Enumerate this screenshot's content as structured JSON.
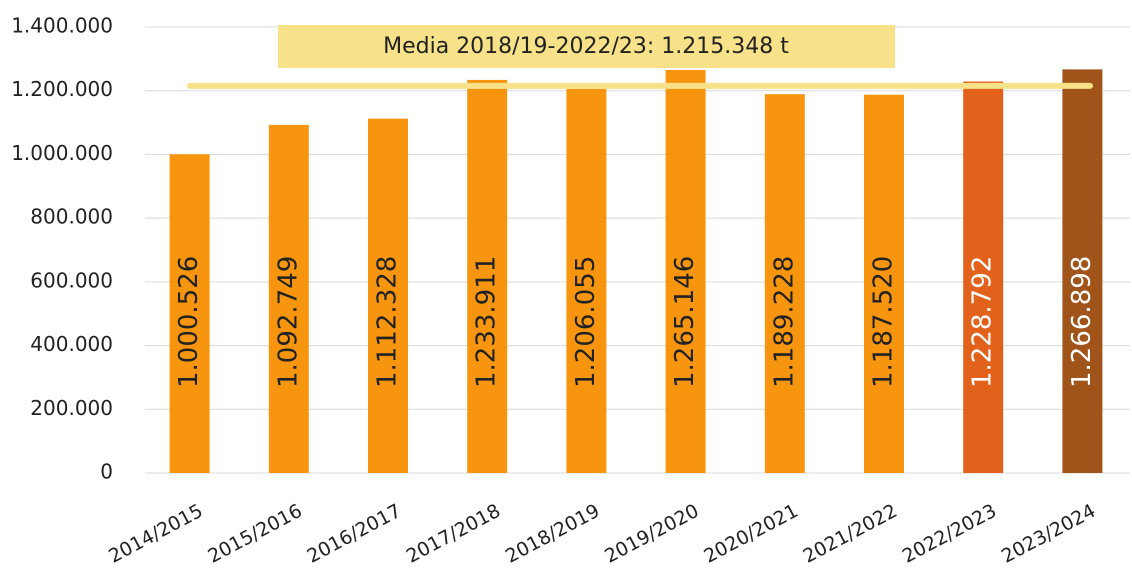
{
  "chart_data": {
    "type": "bar",
    "categories": [
      "2014/2015",
      "2015/2016",
      "2016/2017",
      "2017/2018",
      "2018/2019",
      "2019/2020",
      "2020/2021",
      "2021/2022",
      "2022/2023",
      "2023/2024"
    ],
    "values": [
      1000526,
      1092749,
      1112328,
      1233911,
      1206055,
      1265146,
      1189228,
      1187520,
      1228792,
      1266898
    ],
    "value_labels": [
      "1.000.526",
      "1.092.749",
      "1.112.328",
      "1.233.911",
      "1.206.055",
      "1.265.146",
      "1.189.228",
      "1.187.520",
      "1.228.792",
      "1.266.898"
    ],
    "colors": [
      "#f7960e",
      "#f7960e",
      "#f7960e",
      "#f7960e",
      "#f7960e",
      "#f7960e",
      "#f7960e",
      "#f7960e",
      "#e3621b",
      "#a0541a"
    ],
    "value_label_colors": [
      "#222222",
      "#222222",
      "#222222",
      "#222222",
      "#222222",
      "#222222",
      "#222222",
      "#222222",
      "#ffffff",
      "#ffffff"
    ],
    "ylim": [
      0,
      1400000
    ],
    "yticks": [
      0,
      {
        "value": 200000,
        "label": "200.000"
      },
      {
        "value": 400000,
        "label": "400.000"
      },
      {
        "value": 600000,
        "label": "600.000"
      },
      {
        "value": 800000,
        "label": "800.000"
      },
      {
        "value": 1000000,
        "label": "1.000.000"
      },
      {
        "value": 1200000,
        "label": "1.200.000"
      },
      {
        "value": 1400000,
        "label": "1.400.000"
      }
    ],
    "grid": true,
    "average_line": {
      "value": 1215348,
      "label": "Media 2018/19-2022/23: 1.215.348 t",
      "color": "#f7e28a"
    }
  }
}
